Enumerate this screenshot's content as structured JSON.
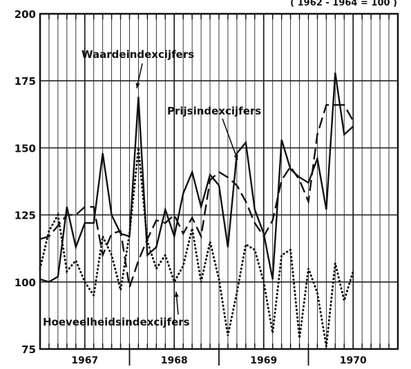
{
  "chart_data": {
    "type": "line",
    "corner_note": "( 1962 - 1964 = 100 )",
    "ylim": [
      75,
      200
    ],
    "y_ticks": [
      "75",
      "100",
      "125",
      "150",
      "175",
      "200"
    ],
    "x_year_labels": [
      "1967",
      "1968",
      "1969",
      "1970"
    ],
    "annotations": {
      "waarde": "Waardeindexcijfers",
      "prijs": "Prijsindexcijfers",
      "hoeveelheid": "Hoeveelheidsindexcijfers"
    },
    "x": [
      1966.5,
      1966.6,
      1966.7,
      1966.8,
      1966.9,
      1967.0,
      1967.1,
      1967.2,
      1967.3,
      1967.4,
      1967.5,
      1967.6,
      1967.7,
      1967.8,
      1967.9,
      1968.0,
      1968.1,
      1968.2,
      1968.3,
      1968.4,
      1968.5,
      1968.6,
      1968.7,
      1968.8,
      1968.9,
      1969.0,
      1969.1,
      1969.2,
      1969.3,
      1969.4,
      1969.5,
      1969.6,
      1969.7,
      1969.8,
      1969.9,
      1970.0,
      1970.1,
      1970.2,
      1970.3,
      1970.4
    ],
    "series": [
      {
        "key": "waarde",
        "style": "solid",
        "values": [
          101,
          100,
          102,
          128,
          113,
          122,
          122,
          148,
          125,
          118,
          117,
          169,
          110,
          113,
          127,
          117,
          133,
          141,
          128,
          140,
          136,
          113,
          148,
          152,
          127,
          118,
          101,
          153,
          142,
          139,
          137,
          146,
          127,
          178,
          155,
          158,
          null,
          null,
          null,
          null
        ]
      },
      {
        "key": "prijs",
        "style": "dashed",
        "values": [
          116,
          117,
          121,
          125,
          125,
          128,
          128,
          110,
          118,
          119,
          98,
          108,
          116,
          123,
          122,
          125,
          118,
          124,
          117,
          138,
          141,
          139,
          136,
          130,
          122,
          117,
          123,
          138,
          143,
          138,
          130,
          155,
          166,
          166,
          166,
          160,
          null,
          null,
          null,
          null
        ]
      },
      {
        "key": "hoeveelheid",
        "style": "dotted",
        "values": [
          105,
          119,
          125,
          104,
          108,
          100,
          95,
          117,
          110,
          97,
          118,
          150,
          115,
          105,
          110,
          100,
          106,
          120,
          100,
          115,
          101,
          80,
          96,
          114,
          112,
          100,
          81,
          110,
          112,
          79,
          105,
          96,
          76,
          107,
          93,
          104,
          null,
          null,
          null,
          null
        ]
      }
    ]
  }
}
